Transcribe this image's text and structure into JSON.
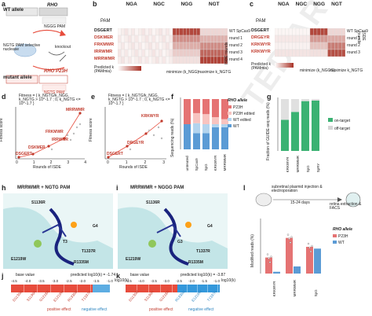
{
  "panel_a": {
    "letter": "a",
    "wt_allele": "WT allele",
    "rho_gene": "RHO",
    "ngg_pam": "NGGG PAM",
    "ngtg_pam": "NGTG PAM",
    "nuclease": "NGTG PAM selective nuclease",
    "knockout": "knockout",
    "mutant_allele": "mutant allele",
    "rho_p23h": "RHO P23H"
  },
  "panel_b": {
    "letter": "b",
    "pam_headers": [
      "NGA",
      "NGC",
      "NGG",
      "NGT"
    ],
    "pam_label": "PAM",
    "rows": [
      "DSGERT",
      "DSKMER",
      "FRKMWR",
      "IRRWMR",
      "MRRWMR"
    ],
    "right_labels": [
      "WT SpCas9",
      "round 1",
      "round 2",
      "round 3",
      "round 4"
    ],
    "isde": "ISDE rounds",
    "predicted": "Predicted k (PAMmia)",
    "minimize": "minimize (k_NGG)",
    "maximize": "maximize k_NGTG"
  },
  "panel_c": {
    "letter": "c",
    "pam_headers": [
      "NGA",
      "NGC",
      "NGG",
      "NGT"
    ],
    "pam_label": "PAM",
    "rows": [
      "DSGERT",
      "DRGEYR",
      "KRKWYR",
      "KRKWYR"
    ],
    "right_labels": [
      "WT SpCas9",
      "round 1",
      "round 2",
      "round 3"
    ],
    "isde": "ISDE rounds",
    "predicted": "Predicted k (PAMmia)",
    "minimize": "minimize (k_NGGG)",
    "maximize": "maximize k_NGTG"
  },
  "panel_d": {
    "letter": "d",
    "formula": "Fitness = { k_NGTG/k_NGG, k_NGTG > 10^-1.7 ; 0, k_NGTG <= 10^-1.7 }",
    "ylabel": "Fitness score",
    "xlabel": "Rounds of ISDE",
    "ticks_x": [
      "0",
      "1",
      "2",
      "3",
      "4"
    ],
    "labels": [
      "MRRWMR",
      "FRKMWR",
      "IRRWMR",
      "DSKMER",
      "DSGERT"
    ]
  },
  "panel_e": {
    "letter": "e",
    "formula": "Fitness = { k_NGTG/k_NGG, k_NGTG > 10^-1.7 ; 0, k_NGTG <= 10^-1.7 }",
    "ylabel": "Fitness score",
    "xlabel": "Rounds of ISDE",
    "ticks_x": [
      "0",
      "1",
      "2",
      "3"
    ],
    "labels": [
      "KRKWYR",
      "DRGEYR",
      "DSGERT"
    ]
  },
  "panel_f": {
    "letter": "f",
    "ylabel": "Sequencing reads (%)",
    "legend_title": "RHO allele",
    "legend": [
      "P23H",
      "P23H edited",
      "WT edited",
      "WT"
    ],
    "categories": [
      "untreated",
      "SpCas9",
      "SpG",
      "KRKWYR",
      "MRRWMR"
    ],
    "yticks": [
      "0",
      "25",
      "50",
      "75",
      "100"
    ]
  },
  "panel_g": {
    "letter": "g",
    "ylabel": "Fraction of GUIDE-seq reads (%)",
    "legend": [
      "on-target",
      "off-target"
    ],
    "categories": [
      "KRKWYR",
      "MRRWMR",
      "SpG",
      "SpRY"
    ],
    "yticks": [
      "0",
      "20",
      "40",
      "60",
      "80",
      "100"
    ]
  },
  "panel_h": {
    "letter": "h",
    "title": "MRRWMR + NGTG PAM",
    "labels": [
      "S1136R",
      "G4",
      "T3",
      "T1337R",
      "E1219W",
      "R1335M"
    ]
  },
  "panel_i": {
    "letter": "i",
    "title": "MRRWMR + NGGG PAM",
    "labels": [
      "S1136R",
      "G4",
      "G3",
      "T1337R",
      "E1219W",
      "R1335M"
    ]
  },
  "panel_j": {
    "letter": "j",
    "base_value": "base value",
    "predicted": "predicted log10(k) = -1.74",
    "scale": [
      "-4.5",
      "-4.0",
      "-3.5",
      "-3.0",
      "-2.5",
      "-2.0",
      "-1.5",
      "-1.0"
    ],
    "unit": "log10(k)",
    "positive": "positive effect",
    "negative": "negative effect",
    "mutations": [
      "D1135M",
      "S1136R",
      "G1218R",
      "E1219W",
      "R1335M",
      "T1337R"
    ]
  },
  "panel_k": {
    "letter": "k",
    "base_value": "base value",
    "predicted": "predicted log10(k) = -3.87",
    "scale": [
      "-4.5",
      "-4.0",
      "-3.5",
      "-3.0",
      "-2.5",
      "-2.0",
      "-1.5",
      "-1.0"
    ],
    "unit": "log10(k)",
    "positive": "positive effect",
    "negative": "negative effect",
    "mutations": [
      "D1135M",
      "S1136R",
      "G1218R",
      "R1335M",
      "E1219W",
      "T1337R"
    ]
  },
  "panel_l": {
    "letter": "l",
    "injection": "subretinal plasmid injection & electroporation",
    "days": "15-24 days",
    "extraction": "retina extraction & FACS",
    "ylabel": "Modified reads (%)",
    "categories": [
      "KRKWYR",
      "MRRWMR",
      "SpG"
    ],
    "legend_title": "RHO allele",
    "legend": [
      "P23H",
      "WT"
    ],
    "yticks": [
      "0",
      "10",
      "20",
      "30",
      "40",
      "50",
      "60"
    ]
  },
  "colors": {
    "red": "#d9534f",
    "pink": "#f4b6b0",
    "blue": "#5b9bd5",
    "lightblue": "#a9cce3",
    "green": "#3bb273",
    "gray": "#cccccc"
  }
}
